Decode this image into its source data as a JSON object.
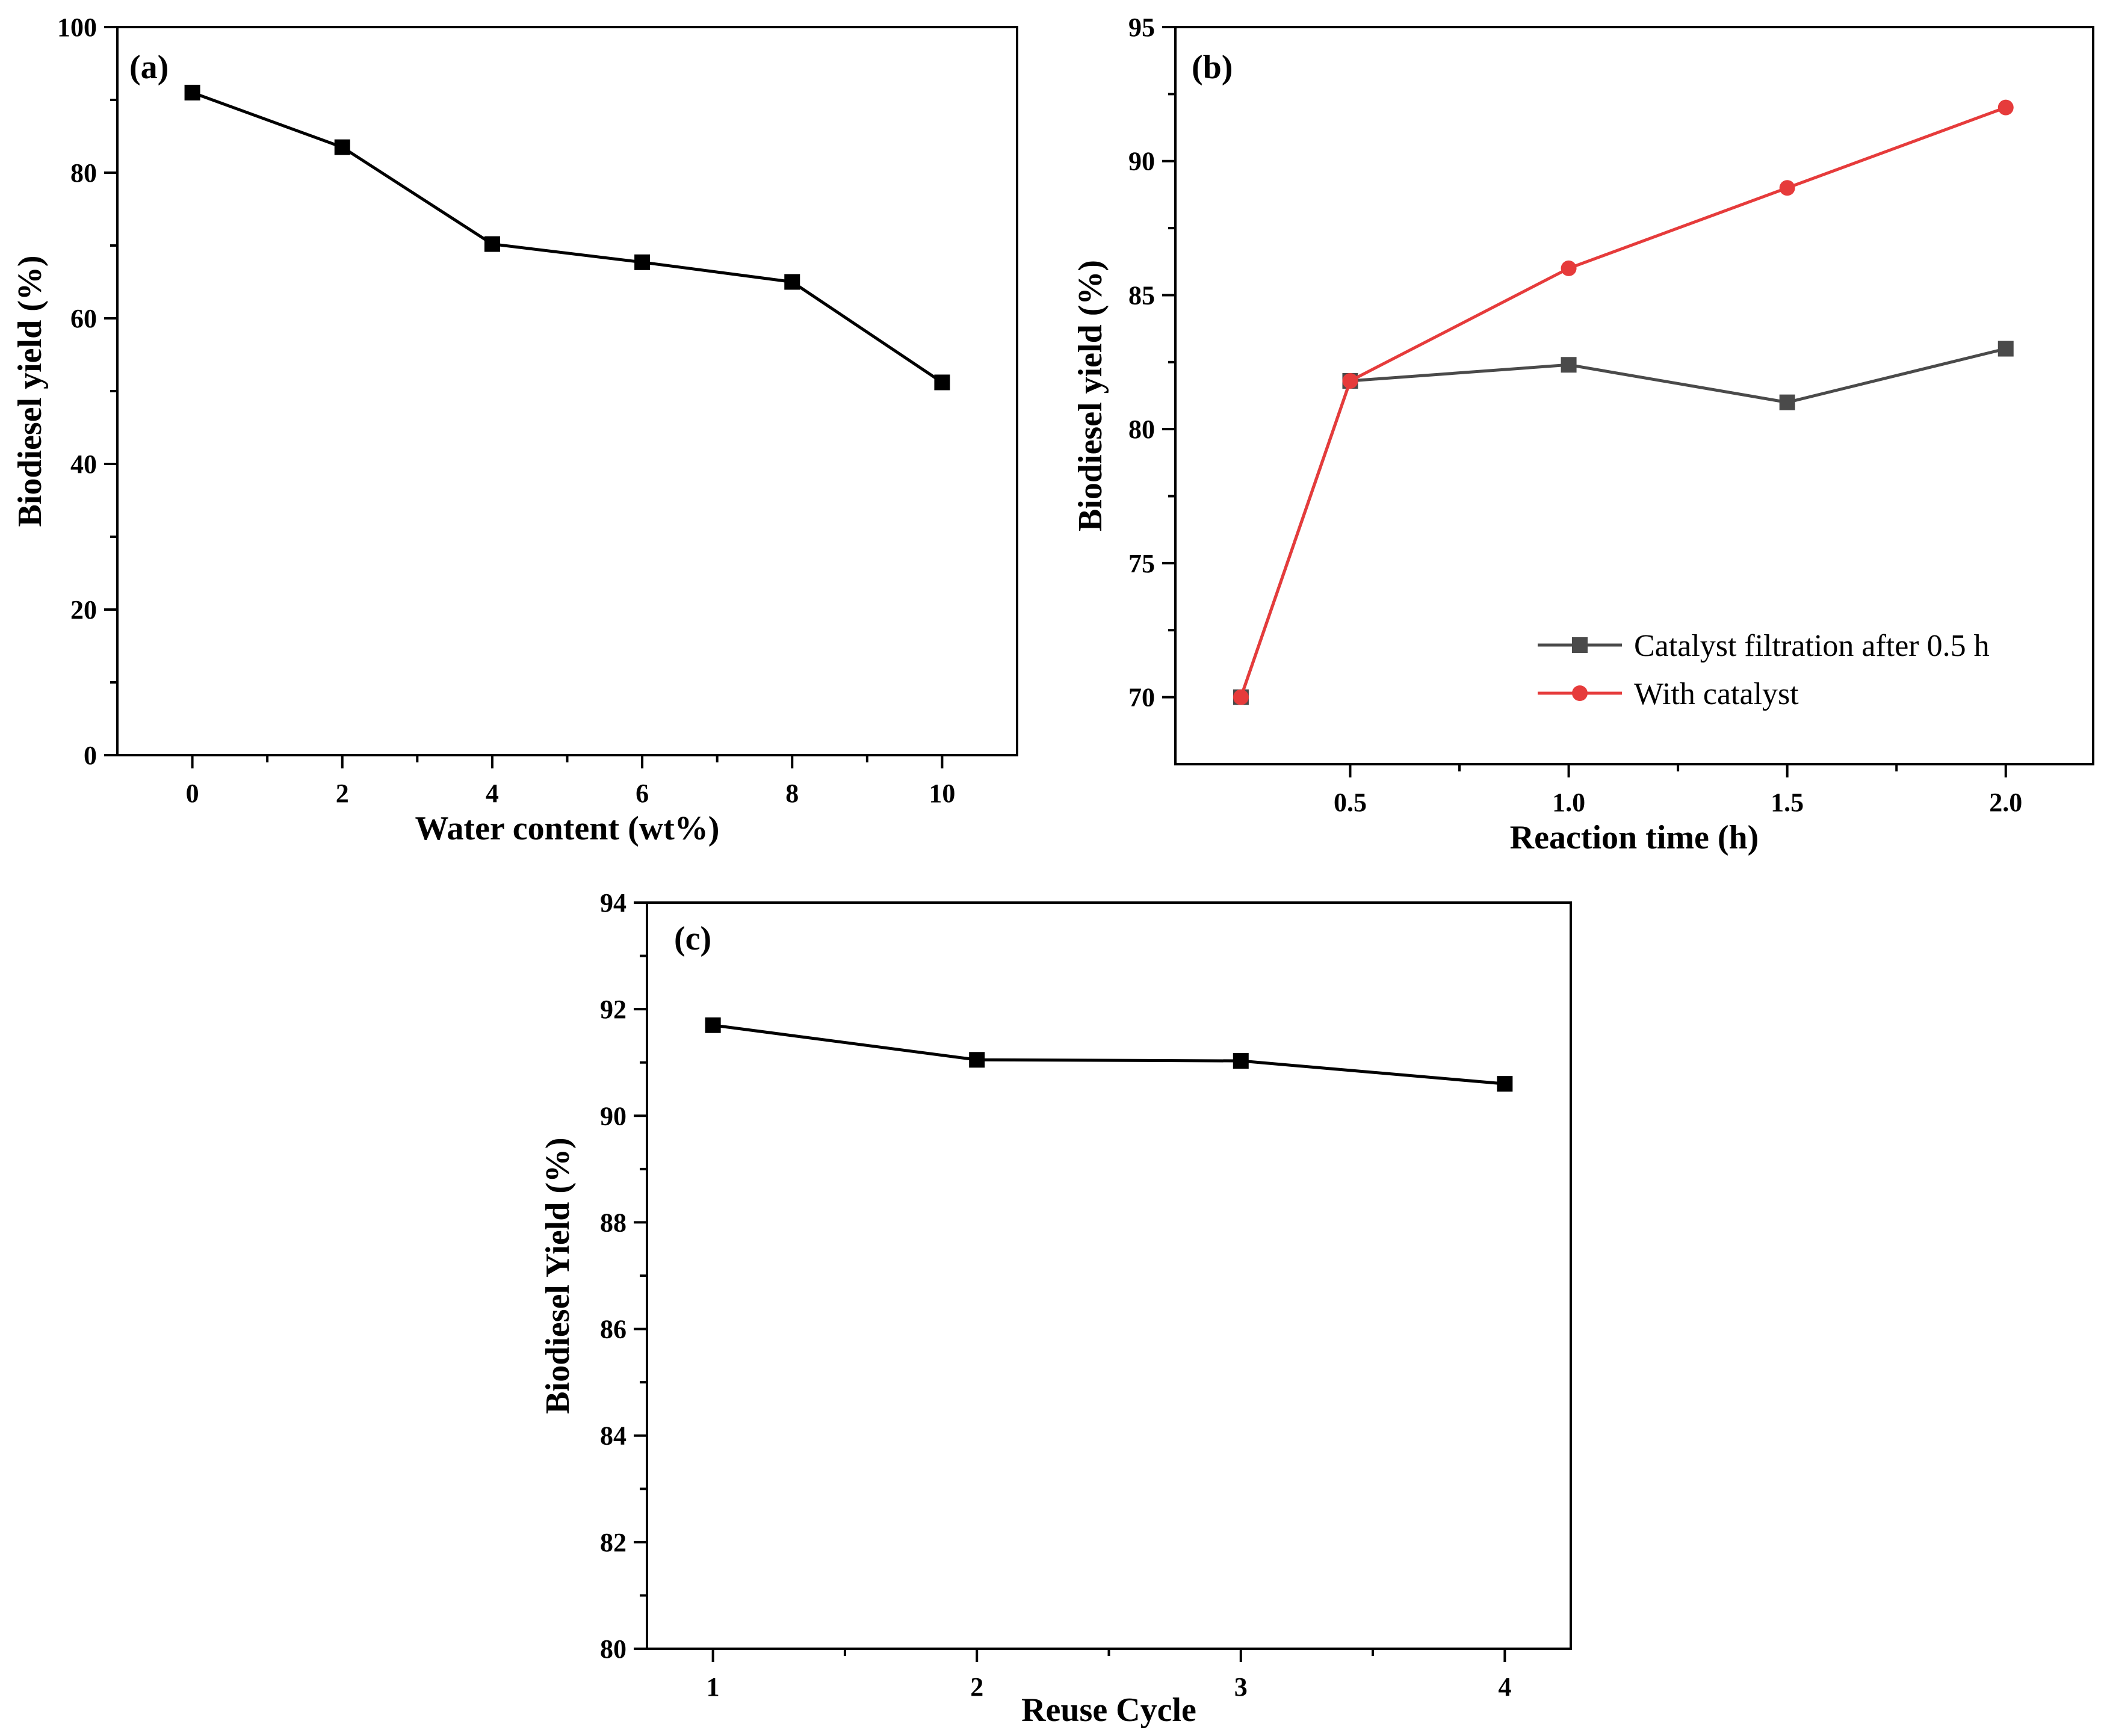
{
  "chart_data": [
    {
      "panel": "(a)",
      "type": "line",
      "xlabel": "Water content (wt%)",
      "ylabel": "Biodiesel yield (%)",
      "xlim": [
        -1,
        11
      ],
      "ylim": [
        0,
        100
      ],
      "xticks": [
        0,
        2,
        4,
        6,
        8,
        10
      ],
      "yticks": [
        0,
        20,
        40,
        60,
        80,
        100
      ],
      "series": [
        {
          "name": "",
          "color": "#000000",
          "marker": "square",
          "x": [
            0,
            2,
            4,
            6,
            8,
            10
          ],
          "values": [
            91,
            83.5,
            70.2,
            67.7,
            65,
            51.2
          ]
        }
      ]
    },
    {
      "panel": "(b)",
      "type": "line",
      "xlabel": "Reaction time (h)",
      "ylabel": "Biodiesel yield (%)",
      "xlim": [
        0.1,
        2.2
      ],
      "ylim": [
        67.5,
        95
      ],
      "xticks": [
        0.5,
        1.0,
        1.5,
        2.0
      ],
      "xtick_labels": [
        "0.5",
        "1.0",
        "1.5",
        "2.0"
      ],
      "yticks": [
        70,
        75,
        80,
        85,
        90,
        95
      ],
      "legend_position": "bottom-right",
      "series": [
        {
          "name": "Catalyst filtration after 0.5 h",
          "color": "#4a4a4a",
          "marker": "square",
          "x": [
            0.25,
            0.5,
            1.0,
            1.5,
            2.0
          ],
          "values": [
            70,
            81.8,
            82.4,
            81,
            83
          ]
        },
        {
          "name": "With catalyst",
          "color": "#e63b3b",
          "marker": "circle",
          "x": [
            0.25,
            0.5,
            1.0,
            1.5,
            2.0
          ],
          "values": [
            70,
            81.8,
            86,
            89,
            92
          ]
        }
      ]
    },
    {
      "panel": "(c)",
      "type": "line",
      "xlabel": "Reuse Cycle",
      "ylabel": "Biodiesel Yield (%)",
      "xlim": [
        0.75,
        4.25
      ],
      "ylim": [
        80,
        94
      ],
      "xticks": [
        1,
        2,
        3,
        4
      ],
      "yticks": [
        80,
        82,
        84,
        86,
        88,
        90,
        92,
        94
      ],
      "series": [
        {
          "name": "",
          "color": "#000000",
          "marker": "square",
          "x": [
            1,
            2,
            3,
            4
          ],
          "values": [
            91.7,
            91.05,
            91.03,
            90.6
          ]
        }
      ]
    }
  ]
}
